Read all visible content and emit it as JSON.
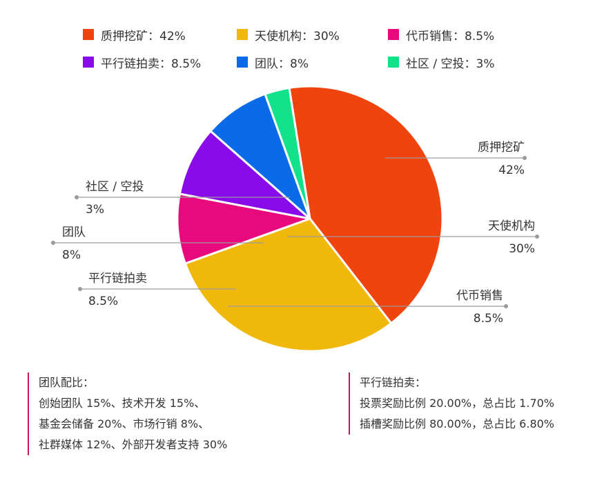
{
  "chart_data": {
    "type": "pie",
    "title": "",
    "slices": [
      {
        "label": "质押挖矿",
        "value": 42,
        "display": "42%",
        "color": "#F0440F"
      },
      {
        "label": "天使机构",
        "value": 30,
        "display": "30%",
        "color": "#F1B80C"
      },
      {
        "label": "代币销售",
        "value": 8.5,
        "display": "8.5%",
        "color": "#E8097D"
      },
      {
        "label": "平行链拍卖",
        "value": 8.5,
        "display": "8.5%",
        "color": "#8A0BEA"
      },
      {
        "label": "团队",
        "value": 8,
        "display": "8%",
        "color": "#0A6BE8"
      },
      {
        "label": "社区 / 空投",
        "value": 3,
        "display": "3%",
        "color": "#12E38A"
      }
    ],
    "legend_position": "top",
    "legend": [
      "质押挖矿：42%",
      "天使机构：30%",
      "代币销售：8.5%",
      "平行链拍卖：8.5%",
      "团队：8%",
      "社区 / 空投：3%"
    ]
  },
  "notes": {
    "team": {
      "title": "团队配比：",
      "lines": [
        "创始团队 15%、技术开发 15%、",
        "基金会储备 20%、市场行销 8%、",
        "社群媒体 12%、外部开发者支持 30%"
      ]
    },
    "auction": {
      "title": "平行链拍卖：",
      "lines": [
        "投票奖励比例 20.00%，总占比 1.70%",
        "插槽奖励比例 80.00%，总占比 6.80%"
      ]
    }
  }
}
